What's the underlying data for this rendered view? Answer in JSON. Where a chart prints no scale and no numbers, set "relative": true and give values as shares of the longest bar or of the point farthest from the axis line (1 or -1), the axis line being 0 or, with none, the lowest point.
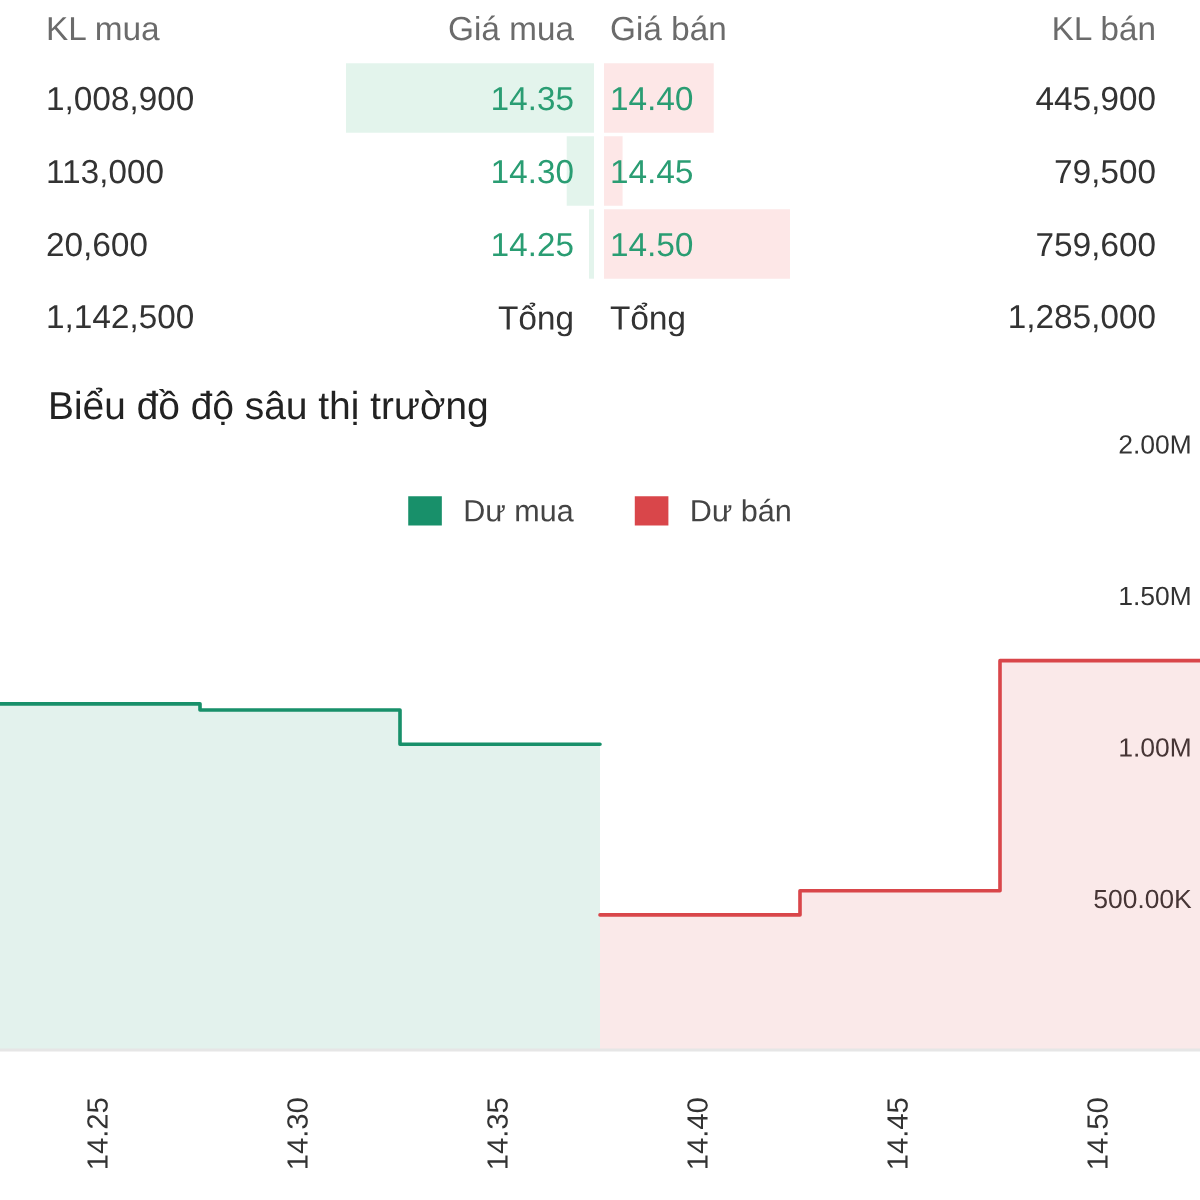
{
  "chart_data": [
    {
      "type": "bar",
      "orientation": "horizontal",
      "relative": true,
      "ylabel": "Giá mua",
      "categories": [
        "14.35",
        "14.30",
        "14.25"
      ],
      "values": [
        1,
        0.11,
        0.02
      ],
      "color": "#e3f4ec",
      "annotations": [
        "KL mua",
        "1,008,900",
        "113,000",
        "20,600",
        "1,142,500",
        "Tổng"
      ]
    },
    {
      "type": "bar",
      "orientation": "horizontal",
      "relative": true,
      "ylabel": "Giá bán",
      "categories": [
        "14.40",
        "14.45",
        "14.50"
      ],
      "values": [
        0.59,
        0.1,
        1
      ],
      "color": "#fde7e7",
      "annotations": [
        "KL bán",
        "445,900",
        "79,500",
        "759,600",
        "Tổng",
        "1,285,000"
      ]
    },
    {
      "type": "area",
      "title": "Biểu đồ độ sâu thị trường",
      "series": [
        {
          "name": "Dư mua",
          "color": "#18906a",
          "x": [
            14.225,
            14.275,
            14.275,
            14.325,
            14.325,
            14.375
          ],
          "values": [
            1142500,
            1142500,
            1121900,
            1121900,
            1008900,
            1008900
          ]
        },
        {
          "name": "Dư bán",
          "color": "#d9464a",
          "x": [
            14.375,
            14.425,
            14.425,
            14.475,
            14.475,
            14.525
          ],
          "values": [
            445900,
            445900,
            525400,
            525400,
            1285000,
            1285000
          ]
        }
      ],
      "xlim": [
        14.225,
        14.525
      ],
      "xticks": [
        14.25,
        {
          "value": 14.3,
          "label": "14.30"
        },
        14.35,
        {
          "value": 14.4,
          "label": "14.40"
        },
        14.45,
        {
          "value": 14.5,
          "label": "14.50"
        }
      ],
      "ylim": [
        0,
        2000000
      ],
      "yticks": [
        {
          "value": 500000,
          "label": "500.00K"
        },
        {
          "value": 1000000,
          "label": "1.00M"
        },
        {
          "value": 1500000,
          "label": "1.50M"
        },
        {
          "value": 2000000,
          "label": "2.00M"
        }
      ],
      "legend": "top"
    }
  ]
}
